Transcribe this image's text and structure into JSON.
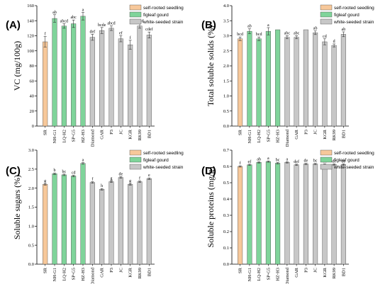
{
  "colors": {
    "self_rooted": "#f7c89a",
    "figleaf": "#7fd49a",
    "white_seeded": "#c7c7c7",
    "bar_stroke": "#444444",
    "axis": "#000000"
  },
  "chart_data": [
    {
      "type": "bar",
      "panel_label": "(A)",
      "ylabel": "VC (mg/100g)",
      "ylim": [
        0,
        160
      ],
      "yticks": [
        0,
        20,
        40,
        60,
        80,
        100,
        120,
        140,
        160
      ],
      "categories": [
        "SR",
        "NH-G1",
        "LQ-H2",
        "SP-G5",
        "HZ-H3",
        "Diamond",
        "GAR",
        "P3",
        "JC",
        "KGR",
        "RK99",
        "BD1"
      ],
      "groups": [
        "self_rooted",
        "figleaf",
        "figleaf",
        "figleaf",
        "figleaf",
        "white_seeded",
        "white_seeded",
        "white_seeded",
        "white_seeded",
        "white_seeded",
        "white_seeded",
        "white_seeded"
      ],
      "values": [
        112,
        143,
        133,
        136,
        146,
        118,
        127,
        130,
        116,
        108,
        133,
        121
      ],
      "errors": [
        7,
        5,
        3,
        5,
        5,
        4,
        4,
        3,
        4,
        6,
        3,
        4
      ],
      "sig": [
        "f",
        "ab",
        "abcd",
        "abc",
        "a",
        "def",
        "bcde",
        "abcd",
        "ef",
        "f",
        "abcd",
        "cdef"
      ],
      "legend": [
        "self-rooted seedling",
        "figleaf gourd",
        "white-seeded strain"
      ]
    },
    {
      "type": "bar",
      "panel_label": "(B)",
      "ylabel": "Total soluble solids (%)",
      "ylim": [
        0,
        4.0
      ],
      "yticks": [
        "0.0",
        "0.5",
        "1.0",
        "1.5",
        "2.0",
        "2.5",
        "3.0",
        "3.5",
        "4.0"
      ],
      "categories": [
        "SR",
        "NH-G1",
        "LQ-H2",
        "SP-G5",
        "HZ-H3",
        "Diamond",
        "GAR",
        "P3",
        "JC",
        "KGR",
        "RK99",
        "BD1"
      ],
      "groups": [
        "self_rooted",
        "figleaf",
        "figleaf",
        "figleaf",
        "figleaf",
        "white_seeded",
        "white_seeded",
        "white_seeded",
        "white_seeded",
        "white_seeded",
        "white_seeded",
        "white_seeded"
      ],
      "values": [
        2.9,
        3.15,
        2.9,
        3.15,
        3.2,
        2.95,
        2.95,
        3.2,
        3.1,
        2.8,
        2.68,
        3.05
      ],
      "errors": [
        0.06,
        0.08,
        0.06,
        0.12,
        0.0,
        0.05,
        0.05,
        0.0,
        0.06,
        0.1,
        0.05,
        0.08
      ],
      "sig": [
        "bcd",
        "ab",
        "bcd",
        "a",
        "",
        "abc",
        "abc",
        "",
        "ab",
        "cd",
        "d",
        "ab"
      ],
      "legend": [
        "self-rooted seedling",
        "figleaf gourd",
        "white-seeded strain"
      ]
    },
    {
      "type": "bar",
      "panel_label": "(C)",
      "ylabel": "Soluble sugars (%)",
      "ylim": [
        0,
        3.0
      ],
      "yticks": [
        "0.0",
        "0.5",
        "1.0",
        "1.5",
        "2.0",
        "2.5",
        "3.0"
      ],
      "categories": [
        "SR",
        "NH-G1",
        "LQ-H2",
        "SP-G5",
        "HZ-H3",
        "Diamond",
        "GAR",
        "P3",
        "JC",
        "KGR",
        "RK99",
        "BD1"
      ],
      "groups": [
        "self_rooted",
        "figleaf",
        "figleaf",
        "figleaf",
        "figleaf",
        "white_seeded",
        "white_seeded",
        "white_seeded",
        "white_seeded",
        "white_seeded",
        "white_seeded",
        "white_seeded"
      ],
      "values": [
        2.1,
        2.38,
        2.35,
        2.32,
        2.65,
        2.15,
        1.97,
        2.17,
        2.28,
        2.1,
        2.17,
        2.25
      ],
      "errors": [
        0.02,
        0.02,
        0.02,
        0.02,
        0.02,
        0.02,
        0.02,
        0.02,
        0.02,
        0.02,
        0.02,
        0.02
      ],
      "sig": [
        "g",
        "b",
        "bc",
        "cd",
        "a",
        "f",
        "h",
        "g",
        "de",
        "g",
        "f",
        "e"
      ],
      "legend": [
        "self-rooted seedling",
        "figleaf gourd",
        "white-seeded strain"
      ]
    },
    {
      "type": "bar",
      "panel_label": "(D)",
      "ylabel": "Soluble proteins (mg/g)",
      "ylim": [
        0,
        0.7
      ],
      "yticks": [
        "0.0",
        "0.1",
        "0.2",
        "0.3",
        "0.4",
        "0.5",
        "0.6",
        "0.7"
      ],
      "categories": [
        "SR",
        "NH-G1",
        "LQ-H2",
        "SP-G5",
        "HZ-H3",
        "Diamond",
        "GAR",
        "P3",
        "JC",
        "KGR",
        "RK99",
        "BD1"
      ],
      "groups": [
        "self_rooted",
        "figleaf",
        "figleaf",
        "figleaf",
        "figleaf",
        "white_seeded",
        "white_seeded",
        "white_seeded",
        "white_seeded",
        "white_seeded",
        "white_seeded",
        "white_seeded"
      ],
      "values": [
        0.6,
        0.61,
        0.625,
        0.63,
        0.62,
        0.625,
        0.61,
        0.615,
        0.615,
        0.612,
        0.612,
        0.612
      ],
      "errors": [
        0.004,
        0.004,
        0.004,
        0.004,
        0.004,
        0.004,
        0.004,
        0.004,
        0.004,
        0.004,
        0.004,
        0.004
      ],
      "sig": [
        "f",
        "ef",
        "ab",
        "a",
        "bc",
        "a",
        "def",
        "de",
        "bc",
        "de",
        "de",
        "de"
      ],
      "legend": [
        "self-rooted seedling",
        "figleaf gourd",
        "white-seeded strain"
      ]
    }
  ]
}
